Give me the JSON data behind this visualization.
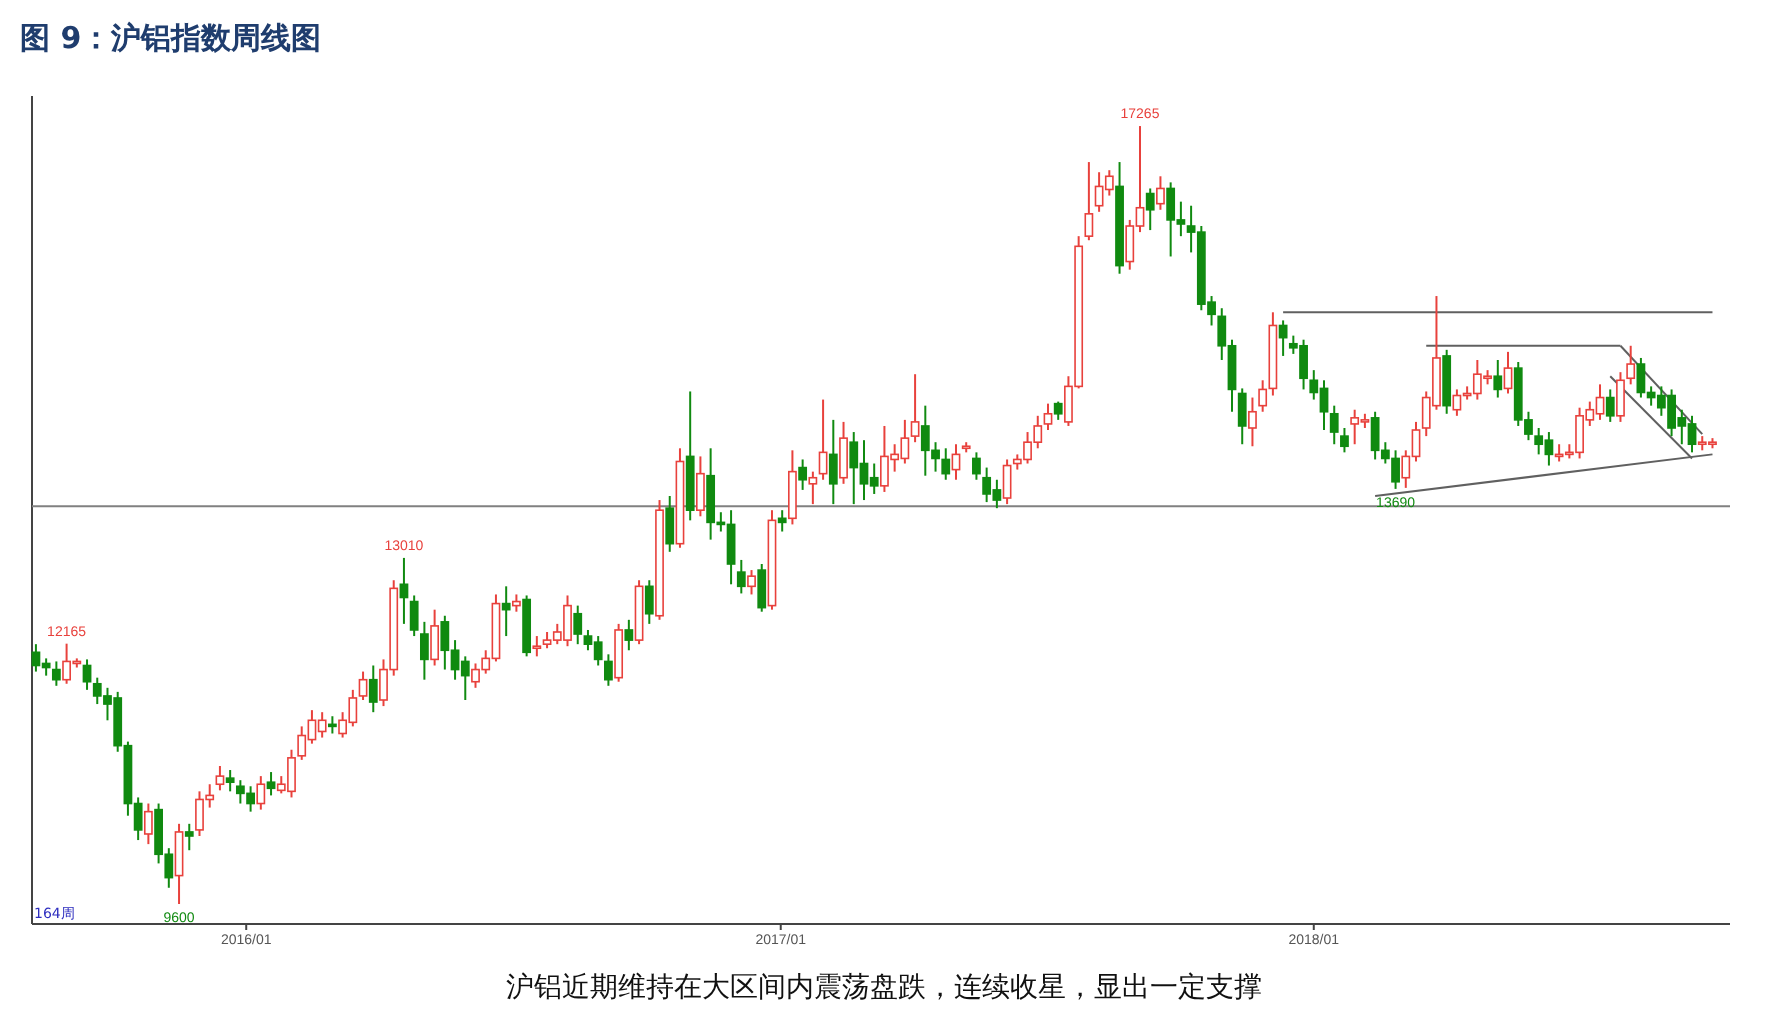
{
  "chart_data": {
    "type": "candlestick",
    "title": "图 9：沪铝指数周线图",
    "annotations": [
      "164周",
      "沪铝近期维持在大区间内震荡盘跌，连续收星，显出一定支撑",
      {
        "text": "12165",
        "x": "2015-08-31",
        "y": 12165
      },
      {
        "text": "9600",
        "x": "2015-11-16",
        "y": 9600
      },
      {
        "text": "13010",
        "x": "2016-04-18",
        "y": 13010
      },
      {
        "text": "17265",
        "x": "2017-09-04",
        "y": 17265
      },
      {
        "text": "13690",
        "x": "2018-02-26",
        "y": 13690
      }
    ],
    "x": [
      "2015-08-10",
      "2015-08-17",
      "2015-08-24",
      "2015-08-31",
      "2015-09-07",
      "2015-09-14",
      "2015-09-21",
      "2015-09-28",
      "2015-10-05",
      "2015-10-12",
      "2015-10-19",
      "2015-10-26",
      "2015-11-02",
      "2015-11-09",
      "2015-11-16",
      "2015-11-23",
      "2015-11-30",
      "2015-12-07",
      "2015-12-14",
      "2015-12-21",
      "2015-12-28",
      "2016-01-04",
      "2016-01-11",
      "2016-01-18",
      "2016-01-25",
      "2016-02-01",
      "2016-02-08",
      "2016-02-15",
      "2016-02-22",
      "2016-02-29",
      "2016-03-07",
      "2016-03-14",
      "2016-03-21",
      "2016-03-28",
      "2016-04-04",
      "2016-04-11",
      "2016-04-18",
      "2016-04-25",
      "2016-05-02",
      "2016-05-09",
      "2016-05-16",
      "2016-05-23",
      "2016-05-30",
      "2016-06-06",
      "2016-06-13",
      "2016-06-20",
      "2016-06-27",
      "2016-07-04",
      "2016-07-11",
      "2016-07-18",
      "2016-07-25",
      "2016-08-01",
      "2016-08-08",
      "2016-08-15",
      "2016-08-22",
      "2016-08-29",
      "2016-09-05",
      "2016-09-12",
      "2016-09-19",
      "2016-09-26",
      "2016-10-03",
      "2016-10-10",
      "2016-10-17",
      "2016-10-24",
      "2016-10-31",
      "2016-11-07",
      "2016-11-14",
      "2016-11-21",
      "2016-11-28",
      "2016-12-05",
      "2016-12-12",
      "2016-12-19",
      "2016-12-26",
      "2017-01-02",
      "2017-01-09",
      "2017-01-16",
      "2017-01-23",
      "2017-01-30",
      "2017-02-06",
      "2017-02-13",
      "2017-02-20",
      "2017-02-27",
      "2017-03-06",
      "2017-03-13",
      "2017-03-20",
      "2017-03-27",
      "2017-04-03",
      "2017-04-10",
      "2017-04-17",
      "2017-04-24",
      "2017-05-01",
      "2017-05-08",
      "2017-05-15",
      "2017-05-22",
      "2017-05-29",
      "2017-06-05",
      "2017-06-12",
      "2017-06-19",
      "2017-06-26",
      "2017-07-03",
      "2017-07-10",
      "2017-07-17",
      "2017-07-24",
      "2017-07-31",
      "2017-08-07",
      "2017-08-14",
      "2017-08-21",
      "2017-08-28",
      "2017-09-04",
      "2017-09-11",
      "2017-09-18",
      "2017-09-25",
      "2017-10-02",
      "2017-10-09",
      "2017-10-16",
      "2017-10-23",
      "2017-10-30",
      "2017-11-06",
      "2017-11-13",
      "2017-11-20",
      "2017-11-27",
      "2017-12-04",
      "2017-12-11",
      "2017-12-18",
      "2017-12-25",
      "2018-01-01",
      "2018-01-08",
      "2018-01-15",
      "2018-01-22",
      "2018-01-29",
      "2018-02-05",
      "2018-02-12",
      "2018-02-19",
      "2018-02-26",
      "2018-03-05",
      "2018-03-12",
      "2018-03-19",
      "2018-03-26",
      "2018-04-02",
      "2018-04-09",
      "2018-04-16",
      "2018-04-23",
      "2018-04-30",
      "2018-05-07",
      "2018-05-14",
      "2018-05-21",
      "2018-05-28",
      "2018-06-04",
      "2018-06-11",
      "2018-06-18",
      "2018-06-25",
      "2018-07-02",
      "2018-07-09",
      "2018-07-16",
      "2018-07-23",
      "2018-07-30",
      "2018-08-06",
      "2018-08-13",
      "2018-08-20",
      "2018-08-27",
      "2018-09-03",
      "2018-09-10",
      "2018-09-17",
      "2018-09-24",
      "2018-10-01"
    ],
    "ohlc": [
      [
        12080,
        12160,
        11890,
        11950
      ],
      [
        11970,
        12020,
        11850,
        11930
      ],
      [
        11910,
        11990,
        11750,
        11810
      ],
      [
        11810,
        12165,
        11770,
        11990
      ],
      [
        11970,
        12020,
        11930,
        11990
      ],
      [
        11950,
        12010,
        11710,
        11790
      ],
      [
        11770,
        11830,
        11570,
        11650
      ],
      [
        11650,
        11730,
        11410,
        11570
      ],
      [
        11630,
        11690,
        11100,
        11160
      ],
      [
        11160,
        11200,
        10470,
        10590
      ],
      [
        10590,
        10650,
        10230,
        10330
      ],
      [
        10290,
        10590,
        10190,
        10510
      ],
      [
        10530,
        10590,
        10000,
        10090
      ],
      [
        10090,
        10150,
        9760,
        9860
      ],
      [
        9880,
        10390,
        9600,
        10310
      ],
      [
        10310,
        10390,
        10130,
        10270
      ],
      [
        10330,
        10710,
        10270,
        10630
      ],
      [
        10630,
        10780,
        10550,
        10670
      ],
      [
        10780,
        10960,
        10720,
        10860
      ],
      [
        10840,
        10920,
        10710,
        10800
      ],
      [
        10760,
        10820,
        10590,
        10690
      ],
      [
        10690,
        10760,
        10510,
        10590
      ],
      [
        10590,
        10860,
        10530,
        10780
      ],
      [
        10800,
        10900,
        10670,
        10740
      ],
      [
        10720,
        10860,
        10690,
        10780
      ],
      [
        10710,
        11120,
        10650,
        11040
      ],
      [
        11060,
        11350,
        11020,
        11260
      ],
      [
        11220,
        11510,
        11180,
        11410
      ],
      [
        11300,
        11490,
        11240,
        11410
      ],
      [
        11370,
        11450,
        11280,
        11350
      ],
      [
        11280,
        11490,
        11240,
        11410
      ],
      [
        11390,
        11710,
        11350,
        11630
      ],
      [
        11650,
        11890,
        11610,
        11810
      ],
      [
        11810,
        11950,
        11490,
        11590
      ],
      [
        11610,
        12010,
        11550,
        11910
      ],
      [
        11910,
        12790,
        11850,
        12710
      ],
      [
        12750,
        13010,
        12360,
        12620
      ],
      [
        12580,
        12640,
        12240,
        12300
      ],
      [
        12260,
        12380,
        11810,
        12010
      ],
      [
        12010,
        12500,
        11950,
        12340
      ],
      [
        12380,
        12440,
        11910,
        12100
      ],
      [
        12100,
        12200,
        11810,
        11910
      ],
      [
        11990,
        12040,
        11610,
        11850
      ],
      [
        11790,
        11970,
        11730,
        11910
      ],
      [
        11910,
        12100,
        11870,
        12020
      ],
      [
        12020,
        12650,
        11990,
        12560
      ],
      [
        12560,
        12730,
        12240,
        12500
      ],
      [
        12540,
        12650,
        12480,
        12580
      ],
      [
        12600,
        12640,
        12040,
        12080
      ],
      [
        12120,
        12240,
        12040,
        12140
      ],
      [
        12160,
        12280,
        12120,
        12200
      ],
      [
        12200,
        12360,
        12160,
        12280
      ],
      [
        12200,
        12640,
        12140,
        12540
      ],
      [
        12460,
        12540,
        12160,
        12260
      ],
      [
        12240,
        12300,
        12100,
        12160
      ],
      [
        12180,
        12240,
        11950,
        12010
      ],
      [
        11990,
        12060,
        11750,
        11810
      ],
      [
        11830,
        12360,
        11790,
        12300
      ],
      [
        12300,
        12400,
        12100,
        12200
      ],
      [
        12200,
        12790,
        12160,
        12730
      ],
      [
        12730,
        12790,
        12360,
        12460
      ],
      [
        12440,
        13580,
        12400,
        13480
      ],
      [
        13500,
        13620,
        13070,
        13150
      ],
      [
        13150,
        14090,
        13110,
        13960
      ],
      [
        14010,
        14650,
        13380,
        13480
      ],
      [
        13480,
        14010,
        13420,
        13840
      ],
      [
        13820,
        14090,
        13190,
        13360
      ],
      [
        13360,
        13460,
        13270,
        13340
      ],
      [
        13340,
        13480,
        12750,
        12950
      ],
      [
        12870,
        12990,
        12660,
        12730
      ],
      [
        12730,
        12890,
        12650,
        12830
      ],
      [
        12890,
        12950,
        12480,
        12520
      ],
      [
        12540,
        13480,
        12500,
        13380
      ],
      [
        13400,
        13480,
        13270,
        13360
      ],
      [
        13400,
        14070,
        13340,
        13860
      ],
      [
        13900,
        13980,
        13680,
        13780
      ],
      [
        13740,
        13860,
        13540,
        13800
      ],
      [
        13840,
        14570,
        13780,
        14050
      ],
      [
        14030,
        14370,
        13540,
        13740
      ],
      [
        13800,
        14350,
        13740,
        14190
      ],
      [
        14150,
        14250,
        13540,
        13900
      ],
      [
        13940,
        14170,
        13580,
        13740
      ],
      [
        13800,
        13940,
        13640,
        13720
      ],
      [
        13720,
        14310,
        13660,
        14010
      ],
      [
        13980,
        14130,
        13860,
        14030
      ],
      [
        13990,
        14370,
        13940,
        14190
      ],
      [
        14210,
        14820,
        14150,
        14350
      ],
      [
        14310,
        14510,
        13820,
        14070
      ],
      [
        14070,
        14150,
        13860,
        13990
      ],
      [
        13980,
        14090,
        13780,
        13840
      ],
      [
        13880,
        14130,
        13780,
        14030
      ],
      [
        14090,
        14150,
        14050,
        14110
      ],
      [
        13990,
        14050,
        13780,
        13840
      ],
      [
        13800,
        13900,
        13560,
        13640
      ],
      [
        13680,
        13780,
        13500,
        13580
      ],
      [
        13600,
        13980,
        13540,
        13920
      ],
      [
        13940,
        14030,
        13880,
        13980
      ],
      [
        13980,
        14250,
        13940,
        14150
      ],
      [
        14150,
        14410,
        14090,
        14310
      ],
      [
        14330,
        14530,
        14270,
        14430
      ],
      [
        14530,
        14550,
        14370,
        14430
      ],
      [
        14350,
        14800,
        14310,
        14700
      ],
      [
        14700,
        16180,
        14680,
        16080
      ],
      [
        16180,
        16910,
        16140,
        16400
      ],
      [
        16480,
        16810,
        16420,
        16670
      ],
      [
        16640,
        16830,
        16580,
        16770
      ],
      [
        16670,
        16910,
        15810,
        15890
      ],
      [
        15930,
        16340,
        15850,
        16280
      ],
      [
        16280,
        17265,
        16220,
        16460
      ],
      [
        16600,
        16650,
        16240,
        16440
      ],
      [
        16500,
        16770,
        16440,
        16650
      ],
      [
        16650,
        16710,
        15980,
        16340
      ],
      [
        16340,
        16520,
        16180,
        16300
      ],
      [
        16280,
        16480,
        16020,
        16220
      ],
      [
        16220,
        16280,
        15450,
        15510
      ],
      [
        15530,
        15590,
        15300,
        15410
      ],
      [
        15390,
        15470,
        14960,
        15100
      ],
      [
        15100,
        15160,
        14450,
        14670
      ],
      [
        14630,
        14680,
        14130,
        14310
      ],
      [
        14290,
        14590,
        14110,
        14450
      ],
      [
        14510,
        14760,
        14450,
        14670
      ],
      [
        14680,
        15430,
        14610,
        15300
      ],
      [
        15300,
        15350,
        15000,
        15180
      ],
      [
        15120,
        15200,
        15020,
        15080
      ],
      [
        15100,
        15160,
        14670,
        14780
      ],
      [
        14760,
        14860,
        14570,
        14640
      ],
      [
        14680,
        14760,
        14270,
        14450
      ],
      [
        14430,
        14510,
        14130,
        14250
      ],
      [
        14210,
        14290,
        14050,
        14110
      ],
      [
        14330,
        14470,
        14130,
        14390
      ],
      [
        14350,
        14430,
        14290,
        14370
      ],
      [
        14390,
        14450,
        13980,
        14070
      ],
      [
        14070,
        14150,
        13940,
        13990
      ],
      [
        13990,
        14070,
        13690,
        13760
      ],
      [
        13800,
        14070,
        13700,
        14010
      ],
      [
        14010,
        14350,
        13960,
        14270
      ],
      [
        14290,
        14650,
        14210,
        14590
      ],
      [
        14510,
        15590,
        14470,
        14980
      ],
      [
        15000,
        15060,
        14430,
        14510
      ],
      [
        14470,
        14670,
        14410,
        14610
      ],
      [
        14610,
        14700,
        14570,
        14630
      ],
      [
        14630,
        14960,
        14570,
        14820
      ],
      [
        14780,
        14860,
        14720,
        14800
      ],
      [
        14800,
        14960,
        14590,
        14670
      ],
      [
        14680,
        15040,
        14630,
        14880
      ],
      [
        14880,
        14940,
        14310,
        14370
      ],
      [
        14370,
        14450,
        14170,
        14230
      ],
      [
        14210,
        14290,
        14030,
        14130
      ],
      [
        14170,
        14250,
        13920,
        14030
      ],
      [
        14010,
        14130,
        13960,
        14030
      ],
      [
        14030,
        14130,
        13990,
        14050
      ],
      [
        14050,
        14490,
        13990,
        14410
      ],
      [
        14370,
        14550,
        14310,
        14470
      ],
      [
        14430,
        14720,
        14370,
        14590
      ],
      [
        14590,
        14670,
        14350,
        14410
      ],
      [
        14410,
        14840,
        14350,
        14760
      ],
      [
        14780,
        15100,
        14720,
        14920
      ],
      [
        14920,
        14980,
        14590,
        14640
      ],
      [
        14640,
        14700,
        14510,
        14590
      ],
      [
        14610,
        14700,
        14410,
        14490
      ],
      [
        14610,
        14670,
        14210,
        14290
      ],
      [
        14390,
        14470,
        14130,
        14310
      ],
      [
        14330,
        14410,
        14050,
        14130
      ],
      [
        14130,
        14210,
        14070,
        14150
      ],
      [
        14130,
        14190,
        14090,
        14150
      ]
    ],
    "series": [
      {
        "type": "line",
        "color": "#606060",
        "x": [
          "2017-12-11",
          "2018-10-01"
        ],
        "values": [
          15430,
          15430
        ]
      },
      {
        "type": "line",
        "color": "#606060",
        "x": [
          "2018-03-19",
          "2018-07-30"
        ],
        "values": [
          15100,
          15100
        ]
      },
      {
        "type": "line",
        "color": "#606060",
        "x": [
          "2018-02-12",
          "2018-10-01"
        ],
        "values": [
          13620,
          14030
        ]
      },
      {
        "type": "line",
        "color": "#606060",
        "x": [
          "2018-07-30",
          "2018-09-24"
        ],
        "values": [
          15100,
          14230
        ]
      },
      {
        "type": "line",
        "color": "#606060",
        "x": [
          "2018-07-23",
          "2018-09-17"
        ],
        "values": [
          14800,
          13990
        ]
      }
    ],
    "ref_lines": [
      {
        "axis": "y",
        "value": 13520,
        "color": "#808080"
      }
    ],
    "xlim": [
      "2015-08-08",
      "2018-10-13"
    ],
    "xticks": [
      {
        "value": "2016-01-01",
        "label": "2016/01"
      },
      {
        "value": "2017-01-01",
        "label": "2017/01"
      },
      {
        "value": "2018-01-01",
        "label": "2018/01"
      }
    ],
    "ylim": [
      9403,
      17561
    ],
    "tick_labels": "x"
  }
}
